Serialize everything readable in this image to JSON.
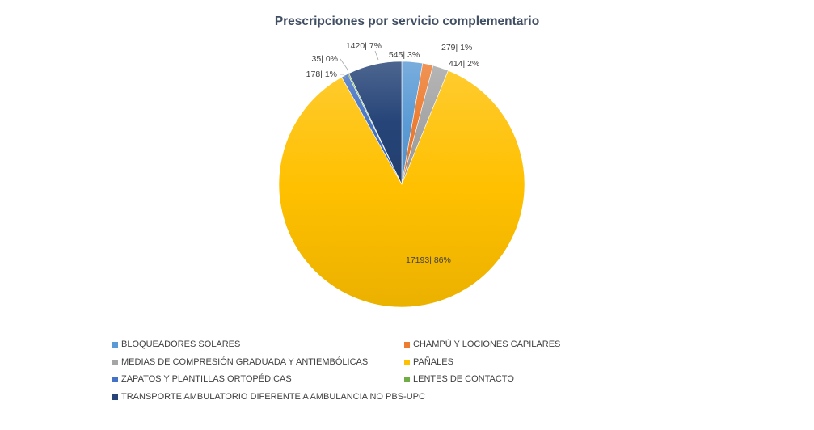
{
  "chart_data": {
    "type": "pie",
    "title": "Prescripciones por servicio complementario",
    "start_angle_deg": 0,
    "direction": "clockwise",
    "legend_position": "bottom",
    "slices": [
      {
        "name": "BLOQUEADORES SOLARES",
        "value": 545,
        "percent": 3,
        "label": "545| 3%",
        "color": "#5b9bd5"
      },
      {
        "name": "CHAMPÚ Y LOCIONES CAPILARES",
        "value": 279,
        "percent": 1,
        "label": "279| 1%",
        "color": "#ed7d31"
      },
      {
        "name": "MEDIAS DE COMPRESIÓN GRADUADA Y ANTIEMBÓLICAS",
        "value": 414,
        "percent": 2,
        "label": "414| 2%",
        "color": "#a5a5a5"
      },
      {
        "name": "PAÑALES",
        "value": 17193,
        "percent": 86,
        "label": "17193| 86%",
        "color": "#ffc000"
      },
      {
        "name": "ZAPATOS Y PLANTILLAS ORTOPÉDICAS",
        "value": 178,
        "percent": 1,
        "label": "178| 1%",
        "color": "#4472c4"
      },
      {
        "name": "LENTES DE CONTACTO",
        "value": 35,
        "percent": 0,
        "label": "35| 0%",
        "color": "#70ad47"
      },
      {
        "name": "TRANSPORTE AMBULATORIO DIFERENTE A AMBULANCIA NO PBS-UPC",
        "value": 1420,
        "percent": 7,
        "label": "1420| 7%",
        "color": "#264478"
      }
    ]
  }
}
